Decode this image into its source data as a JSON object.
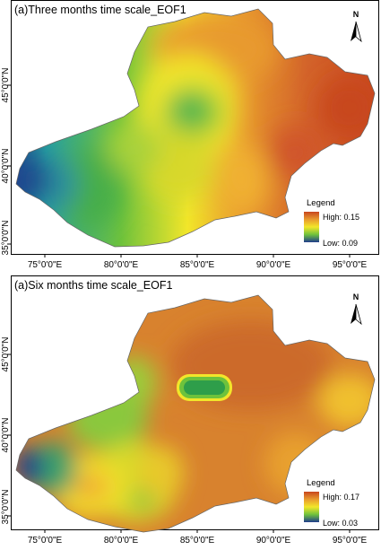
{
  "maps": [
    {
      "title": "(a)Three months time scale_EOF1",
      "x_ticks": [
        "75°0'0\"E",
        "80°0'0\"E",
        "85°0'0\"E",
        "90°0'0\"E",
        "95°0'0\"E"
      ],
      "y_ticks": [
        "45°0'0\"N",
        "40°0'0\"N",
        "35°0'0\"N"
      ],
      "north_label": "N",
      "legend": {
        "title": "Legend",
        "high_label": "High: 0.15",
        "low_label": "Low: 0.09",
        "high": 0.15,
        "low": 0.09
      }
    },
    {
      "title": "(a)Six months time scale_EOF1",
      "x_ticks": [
        "75°0'0\"E",
        "80°0'0\"E",
        "85°0'0\"E",
        "90°0'0\"E",
        "95°0'0\"E"
      ],
      "y_ticks": [
        "45°0'0\"N",
        "40°0'0\"N",
        "35°0'0\"N"
      ],
      "north_label": "N",
      "legend": {
        "title": "Legend",
        "high_label": "High: 0.17",
        "low_label": "Low: 0.03",
        "high": 0.17,
        "low": 0.03
      }
    }
  ],
  "colors": {
    "ramp_high": "#c8461e",
    "ramp_mid_high": "#e89a2e",
    "ramp_mid": "#f2e62a",
    "ramp_mid_low": "#6ec23c",
    "ramp_low": "#1f3c8c"
  }
}
